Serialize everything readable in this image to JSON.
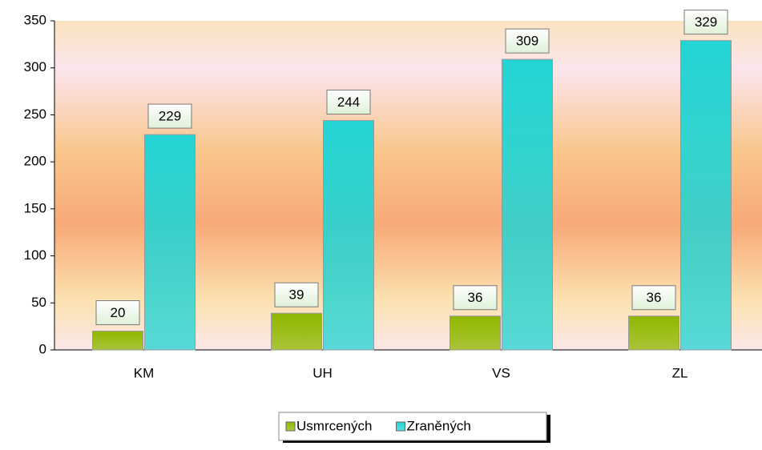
{
  "chart_data": {
    "type": "bar",
    "categories": [
      "KM",
      "UH",
      "VS",
      "ZL"
    ],
    "series": [
      {
        "name": "Usmrcených",
        "color": "#8fb800",
        "values": [
          20,
          39,
          36,
          36
        ]
      },
      {
        "name": "Zraněných",
        "color": "#22d4d4",
        "values": [
          229,
          244,
          309,
          329
        ]
      }
    ],
    "ylim": [
      0,
      350
    ],
    "yticks": [
      0,
      50,
      100,
      150,
      200,
      250,
      300,
      350
    ],
    "legend": "bottom"
  }
}
